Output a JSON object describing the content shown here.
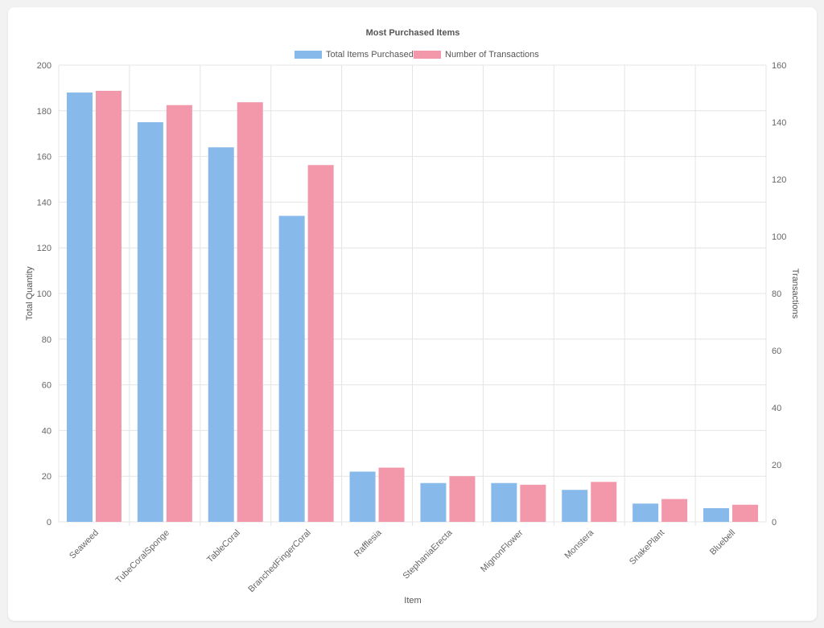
{
  "chart_data": {
    "type": "bar",
    "title": "Most Purchased Items",
    "xlabel": "Item",
    "ylabel": "Total Quantity",
    "y2label": "Transactions",
    "categories": [
      "Seaweed",
      "TubeCoralSponge",
      "TableCoral",
      "BranchedFingerCoral",
      "Rafflesia",
      "StephaniaErecta",
      "MignonFlower",
      "Monstera",
      "SnakePlant",
      "Bluebell"
    ],
    "series": [
      {
        "name": "Total Items Purchased",
        "axis": "left",
        "color": "#88b9eb",
        "values": [
          188,
          175,
          164,
          134,
          22,
          17,
          17,
          14,
          8,
          6
        ]
      },
      {
        "name": "Number of Transactions",
        "axis": "right",
        "color": "#f298aa",
        "values": [
          151,
          146,
          147,
          125,
          19,
          16,
          13,
          14,
          8,
          6
        ]
      }
    ],
    "ylim": [
      0,
      200
    ],
    "y2lim": [
      0,
      160
    ],
    "yticks": [
      "0",
      "20",
      "40",
      "60",
      "80",
      "100",
      "120",
      "140",
      "160",
      "180",
      "200"
    ],
    "y2ticks": [
      "0",
      "20",
      "40",
      "60",
      "80",
      "100",
      "120",
      "140",
      "160"
    ],
    "grid": true,
    "legend": "top-center"
  }
}
